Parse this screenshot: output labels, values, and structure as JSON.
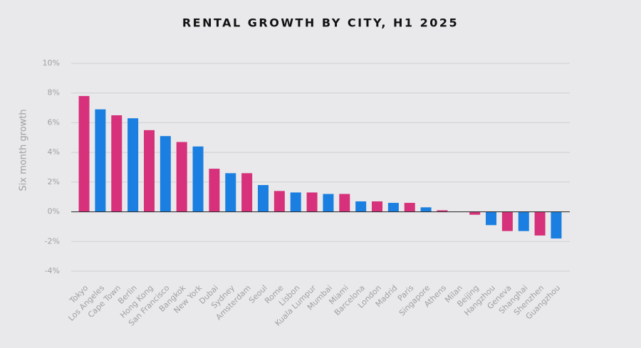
{
  "chart_data": {
    "type": "bar",
    "title": "RENTAL GROWTH BY CITY, H1 2025",
    "y_label": "Six month growth",
    "categories": [
      "Tokyo",
      "Los Angeles",
      "Cape Town",
      "Berlin",
      "Hong Kong",
      "San Francisco",
      "Bangkok",
      "New York",
      "Dubai",
      "Sydney",
      "Amsterdam",
      "Seoul",
      "Rome",
      "Lisbon",
      "Kuala Lumpur",
      "Mumbai",
      "Miami",
      "Barcelona",
      "London",
      "Madrid",
      "Paris",
      "Singapore",
      "Athens",
      "Milan",
      "Beijing",
      "Hangzhou",
      "Geneva",
      "Shanghai",
      "Shenzhen",
      "Guangzhou"
    ],
    "values": [
      7.8,
      6.9,
      6.5,
      6.3,
      5.5,
      5.1,
      4.7,
      4.4,
      2.9,
      2.6,
      2.6,
      1.8,
      1.4,
      1.3,
      1.3,
      1.2,
      1.2,
      0.7,
      0.7,
      0.6,
      0.6,
      0.3,
      0.1,
      0,
      -0.2,
      -0.9,
      -1.3,
      -1.3,
      -1.6,
      -1.8
    ],
    "colors": [
      "#d6317a",
      "#1a7fe0",
      "#d6317a",
      "#1a7fe0",
      "#d6317a",
      "#1a7fe0",
      "#d6317a",
      "#1a7fe0",
      "#d6317a",
      "#1a7fe0",
      "#d6317a",
      "#1a7fe0",
      "#d6317a",
      "#1a7fe0",
      "#d6317a",
      "#1a7fe0",
      "#d6317a",
      "#1a7fe0",
      "#d6317a",
      "#1a7fe0",
      "#d6317a",
      "#1a7fe0",
      "#d6317a",
      "#1a7fe0",
      "#d6317a",
      "#1a7fe0",
      "#d6317a",
      "#1a7fe0",
      "#d6317a",
      "#1a7fe0"
    ],
    "ylim": [
      -4,
      10
    ],
    "yticks": [
      {
        "value": -4,
        "label": "-4%"
      },
      {
        "value": -2,
        "label": "-2%"
      },
      {
        "value": 0,
        "label": "0%"
      },
      {
        "value": 2,
        "label": "2%"
      },
      {
        "value": 4,
        "label": "4%"
      },
      {
        "value": 6,
        "label": "6%"
      },
      {
        "value": 8,
        "label": "8%"
      },
      {
        "value": 10,
        "label": "10%"
      }
    ],
    "grid": true
  }
}
